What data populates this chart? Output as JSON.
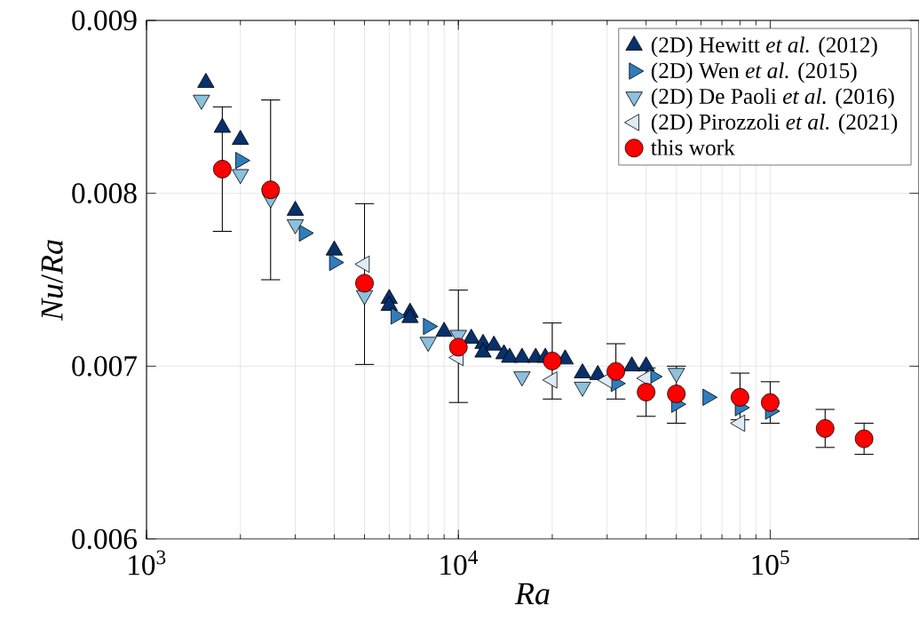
{
  "chart_data": {
    "type": "scatter",
    "xlabel": "*Ra*",
    "ylabel": "*Nu*/*Ra*",
    "log": "x",
    "grid": true,
    "legend": "top right",
    "xlim": [
      1000,
      300000
    ],
    "ylim": [
      0.006,
      0.009
    ],
    "xticks": [
      {
        "value": 1000,
        "label": "10$^{3}$"
      },
      {
        "value": 10000,
        "label": "10$^{4}$"
      },
      {
        "value": 100000,
        "label": "10$^{5}$"
      }
    ],
    "yticks": [
      0.006,
      0.007,
      0.008,
      0.009
    ],
    "series": [
      {
        "name": "(2D) Hewitt *et al.* (2012)",
        "color": "#08306b",
        "marker": "triangle",
        "x": [
          1550,
          1750,
          2000,
          3000,
          4000,
          6000,
          6000,
          7000,
          7000,
          9000,
          11000,
          12000,
          12000,
          13000,
          14000,
          14600,
          16000,
          17700,
          19000,
          22000,
          25000,
          28000,
          36000,
          40000
        ],
        "values": [
          0.00864,
          0.00838,
          0.00831,
          0.0079,
          0.00767,
          0.00739,
          0.00735,
          0.00731,
          0.00728,
          0.0072,
          0.00716,
          0.00713,
          0.00708,
          0.00712,
          0.00707,
          0.00705,
          0.00705,
          0.00705,
          0.00705,
          0.00704,
          0.00696,
          0.00695,
          0.007,
          0.007
        ]
      },
      {
        "name": "(2D) Wen *et al.* (2015)",
        "color": "#2f7dbd",
        "marker": "triangle-right",
        "x": [
          2000,
          3200,
          4000,
          6300,
          8000,
          32000,
          42000,
          50000,
          63000,
          80000,
          100000
        ],
        "values": [
          0.00819,
          0.00777,
          0.0076,
          0.00729,
          0.00723,
          0.0069,
          0.00694,
          0.00678,
          0.00682,
          0.00676,
          0.00674
        ]
      },
      {
        "name": "(2D) De Paoli *et al.* (2016)",
        "color": "#8cc0dd",
        "marker": "triangle-down",
        "x": [
          1500,
          2000,
          2500,
          3000,
          5000,
          8000,
          10000,
          16000,
          25000,
          50000
        ],
        "values": [
          0.00854,
          0.00811,
          0.00797,
          0.00782,
          0.00741,
          0.00714,
          0.00718,
          0.00694,
          0.00688,
          0.00696
        ]
      },
      {
        "name": "(2D) Pirozzoli *et al.* (2021)",
        "color": "#deebf7",
        "marker": "triangle-left",
        "x": [
          5000,
          10000,
          20000,
          30000,
          40000,
          80000
        ],
        "values": [
          0.00759,
          0.00705,
          0.00692,
          0.00692,
          0.00693,
          0.00667
        ]
      },
      {
        "name": "this work",
        "color": "#ff0000",
        "marker": "circle",
        "x": [
          1750,
          2500,
          5000,
          10000,
          20000,
          32000,
          40000,
          50000,
          80000,
          100000,
          150000,
          200000
        ],
        "values": [
          0.00814,
          0.00802,
          0.00748,
          0.00711,
          0.00703,
          0.00697,
          0.00685,
          0.00684,
          0.00682,
          0.00679,
          0.00664,
          0.00658
        ],
        "errors": [
          [
            0.00778,
            0.0085
          ],
          [
            0.0075,
            0.00854
          ],
          [
            0.00701,
            0.00794
          ],
          [
            0.00679,
            0.00744
          ],
          [
            0.00681,
            0.00725
          ],
          [
            0.00681,
            0.00713
          ],
          [
            0.00671,
            0.00699
          ],
          [
            0.00667,
            0.007
          ],
          [
            0.00669,
            0.00696
          ],
          [
            0.00667,
            0.00691
          ],
          [
            0.00653,
            0.00675
          ],
          [
            0.00649,
            0.00667
          ]
        ]
      }
    ]
  }
}
